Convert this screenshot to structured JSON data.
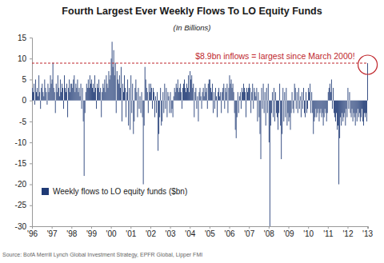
{
  "chart_data": {
    "type": "bar",
    "title": "Fourth Largest Ever Weekly Flows To LO Equity Funds",
    "subtitle": "(In Billions)",
    "source": "Source: BofA Merrill Lynch Global Investment Strategy, EPFR Global, Lipper FMI",
    "categories": [
      "'96",
      null,
      null,
      null,
      null,
      null,
      null,
      null,
      null,
      null,
      null,
      null,
      null,
      null,
      null,
      null,
      null,
      null,
      null,
      null,
      null,
      null,
      null,
      null,
      "'97",
      null,
      null,
      null,
      null,
      null,
      null,
      null,
      null,
      null,
      null,
      null,
      null,
      null,
      null,
      null,
      null,
      null,
      null,
      null,
      null,
      null,
      null,
      null,
      "'98",
      null,
      null,
      null,
      null,
      null,
      null,
      null,
      null,
      null,
      null,
      null,
      null,
      null,
      null,
      null,
      null,
      null,
      null,
      null,
      null,
      null,
      null,
      null,
      "'99",
      null,
      null,
      null,
      null,
      null,
      null,
      null,
      null,
      null,
      null,
      null,
      null,
      null,
      null,
      null,
      null,
      null,
      null,
      null,
      null,
      null,
      null,
      null,
      "'00",
      null,
      null,
      null,
      null,
      null,
      null,
      null,
      null,
      null,
      null,
      null,
      null,
      null,
      null,
      null,
      null,
      null,
      null,
      null,
      null,
      null,
      null,
      null,
      "'01",
      null,
      null,
      null,
      null,
      null,
      null,
      null,
      null,
      null,
      null,
      null,
      null,
      null,
      null,
      null,
      null,
      null,
      null,
      null,
      null,
      null,
      null,
      null,
      "'02",
      null,
      null,
      null,
      null,
      null,
      null,
      null,
      null,
      null,
      null,
      null,
      null,
      null,
      null,
      null,
      null,
      null,
      null,
      null,
      null,
      null,
      null,
      null,
      "'03",
      null,
      null,
      null,
      null,
      null,
      null,
      null,
      null,
      null,
      null,
      null,
      null,
      null,
      null,
      null,
      null,
      null,
      null,
      null,
      null,
      null,
      null,
      null,
      "'04",
      null,
      null,
      null,
      null,
      null,
      null,
      null,
      null,
      null,
      null,
      null,
      null,
      null,
      null,
      null,
      null,
      null,
      null,
      null,
      null,
      null,
      null,
      null,
      "'05",
      null,
      null,
      null,
      null,
      null,
      null,
      null,
      null,
      null,
      null,
      null,
      null,
      null,
      null,
      null,
      null,
      null,
      null,
      null,
      null,
      null,
      null,
      null,
      "'06",
      null,
      null,
      null,
      null,
      null,
      null,
      null,
      null,
      null,
      null,
      null,
      null,
      null,
      null,
      null,
      null,
      null,
      null,
      null,
      null,
      null,
      null,
      null,
      "'07",
      null,
      null,
      null,
      null,
      null,
      null,
      null,
      null,
      null,
      null,
      null,
      null,
      null,
      null,
      null,
      null,
      null,
      null,
      null,
      null,
      null,
      null,
      null,
      "'08",
      null,
      null,
      null,
      null,
      null,
      null,
      null,
      null,
      null,
      null,
      null,
      null,
      null,
      null,
      null,
      null,
      null,
      null,
      null,
      null,
      null,
      null,
      null,
      "'09",
      null,
      null,
      null,
      null,
      null,
      null,
      null,
      null,
      null,
      null,
      null,
      null,
      null,
      null,
      null,
      null,
      null,
      null,
      null,
      null,
      null,
      null,
      null,
      "'10",
      null,
      null,
      null,
      null,
      null,
      null,
      null,
      null,
      null,
      null,
      null,
      null,
      null,
      null,
      null,
      null,
      null,
      null,
      null,
      null,
      null,
      null,
      null,
      "'11",
      null,
      null,
      null,
      null,
      null,
      null,
      null,
      null,
      null,
      null,
      null,
      null,
      null,
      null,
      null,
      null,
      null,
      null,
      null,
      null,
      null,
      null,
      null,
      "'12",
      null,
      null,
      null,
      null,
      null,
      null,
      null,
      null,
      null,
      null,
      null,
      null,
      null,
      null,
      null,
      null,
      null,
      null,
      null,
      null,
      null,
      null,
      null,
      "'13"
    ],
    "series": [
      {
        "name": "Weekly flows to LO equity funds ($bn)",
        "color": "#1f3a75",
        "values": [
          3,
          2,
          4,
          -1,
          5,
          2,
          3,
          1,
          6,
          2,
          -2,
          3,
          4,
          2,
          1,
          5,
          3,
          2,
          -1,
          4,
          2,
          3,
          6,
          4,
          5,
          9,
          3,
          2,
          -3,
          4,
          2,
          6,
          3,
          1,
          5,
          2,
          4,
          3,
          -2,
          6,
          3,
          2,
          4,
          -4,
          3,
          5,
          2,
          4,
          4,
          3,
          5,
          6,
          2,
          4,
          3,
          5,
          2,
          3,
          1,
          4,
          -2,
          3,
          -5,
          -18,
          -3,
          2,
          4,
          3,
          5,
          3,
          6,
          4,
          5,
          3,
          4,
          2,
          6,
          3,
          -2,
          4,
          3,
          5,
          2,
          3,
          -4,
          2,
          4,
          3,
          5,
          2,
          6,
          4,
          3,
          7,
          5,
          6,
          10,
          14,
          8,
          12,
          6,
          9,
          -3,
          7,
          5,
          4,
          6,
          3,
          8,
          -5,
          4,
          2,
          6,
          3,
          -4,
          2,
          5,
          -6,
          3,
          -7,
          6,
          -3,
          4,
          -8,
          -5,
          3,
          5,
          2,
          -4,
          3,
          -2,
          1,
          -3,
          2,
          -4,
          -20,
          -6,
          8,
          5,
          3,
          2,
          -3,
          4,
          2,
          4,
          3,
          -2,
          3,
          2,
          -4,
          1,
          -3,
          2,
          -12,
          -8,
          -4,
          3,
          -6,
          -5,
          2,
          -3,
          4,
          -2,
          3,
          -4,
          2,
          1,
          -3,
          2,
          -3,
          -2,
          -4,
          1,
          3,
          2,
          4,
          3,
          5,
          2,
          3,
          4,
          2,
          -2,
          3,
          4,
          5,
          3,
          2,
          4,
          3,
          6,
          2,
          7,
          5,
          6,
          3,
          4,
          -4,
          2,
          3,
          -2,
          1,
          -5,
          2,
          3,
          1,
          -2,
          2,
          3,
          1,
          4,
          2,
          3,
          -2,
          4,
          5,
          5,
          3,
          2,
          4,
          -3,
          2,
          -2,
          3,
          1,
          -4,
          2,
          3,
          1,
          2,
          -3,
          2,
          3,
          4,
          -2,
          3,
          2,
          4,
          -3,
          3,
          6,
          4,
          5,
          3,
          4,
          2,
          -3,
          -7,
          -9,
          -4,
          2,
          -3,
          1,
          2,
          -2,
          3,
          2,
          4,
          3,
          2,
          -4,
          3,
          2,
          3,
          4,
          3,
          -3,
          2,
          4,
          -2,
          3,
          2,
          1,
          3,
          -5,
          2,
          -4,
          -8,
          -14,
          3,
          -2,
          4,
          -3,
          2,
          -6,
          3,
          -3,
          4,
          -10,
          -30,
          -6,
          -3,
          2,
          -4,
          3,
          -5,
          2,
          -3,
          -4,
          -7,
          -3,
          4,
          -6,
          -14,
          -8,
          3,
          -5,
          2,
          -4,
          3,
          -6,
          -3,
          -5,
          -4,
          -7,
          -3,
          2,
          -2,
          -3,
          4,
          3,
          -2,
          2,
          -3,
          3,
          -2,
          1,
          -4,
          2,
          -2,
          3,
          -3,
          -4,
          2,
          -3,
          -2,
          3,
          2,
          4,
          -3,
          2,
          -3,
          -8,
          -5,
          -4,
          -2,
          -4,
          -3,
          -2,
          -5,
          -3,
          -2,
          -4,
          -3,
          -6,
          -4,
          -2,
          -3,
          -5,
          -3,
          2,
          3,
          4,
          2,
          5,
          -2,
          3,
          -3,
          -4,
          -5,
          -3,
          -7,
          -6,
          -20,
          -9,
          -4,
          -6,
          -3,
          -5,
          -4,
          -3,
          -6,
          -2,
          -4,
          3,
          -2,
          2,
          -3,
          -4,
          -2,
          -5,
          -3,
          -4,
          -6,
          -3,
          -5,
          -2,
          -4,
          -3,
          -5,
          -4,
          -2,
          -5,
          -6,
          -3,
          -4,
          -3,
          -5,
          8.9
        ]
      }
    ],
    "ylim": [
      -30,
      15
    ],
    "yticks": [
      -30,
      -25,
      -20,
      -15,
      -10,
      -5,
      0,
      5,
      10,
      15
    ],
    "grid": false,
    "legend": "lower left",
    "annotations": [
      {
        "text": "$8.9bn inflows = largest since March 2000!",
        "y": 8.9
      }
    ]
  }
}
